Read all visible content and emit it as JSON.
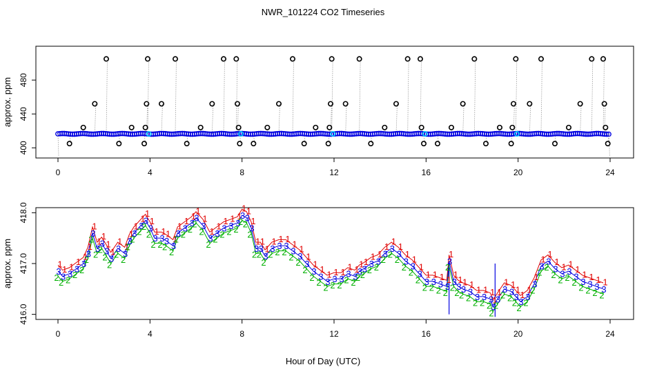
{
  "figure": {
    "title": "NWR_101224  CO2 Timeseries",
    "xlabel": "Hour of Day (UTC)"
  },
  "colors": {
    "axis": "#000000",
    "line_gray": "#9a9a9a",
    "series1": "#e00000",
    "series2": "#00b000",
    "series3": "#0000e0",
    "cyan": "#00c8ff",
    "orange": "#ff8c00"
  },
  "chart_data": [
    {
      "type": "scatter",
      "ylabel": "approx. ppm",
      "xlim": [
        0,
        24
      ],
      "ylim": [
        388,
        520
      ],
      "xticks": [
        0,
        4,
        8,
        12,
        16,
        20,
        24
      ],
      "yticks": [
        400,
        440,
        480
      ],
      "x_tick_labels": [
        "0",
        "4",
        "8",
        "12",
        "16",
        "20",
        "24"
      ],
      "y_tick_labels": [
        "400",
        "440",
        "480"
      ],
      "baseline": 416.5,
      "outliers": [
        {
          "x": 0.5,
          "y": 405
        },
        {
          "x": 1.1,
          "y": 424
        },
        {
          "x": 1.6,
          "y": 452
        },
        {
          "x": 2.1,
          "y": 505
        },
        {
          "x": 2.65,
          "y": 405
        },
        {
          "x": 3.2,
          "y": 424
        },
        {
          "x": 3.75,
          "y": 405
        },
        {
          "x": 3.8,
          "y": 424
        },
        {
          "x": 3.85,
          "y": 452
        },
        {
          "x": 3.9,
          "y": 505
        },
        {
          "x": 4.5,
          "y": 452
        },
        {
          "x": 5.1,
          "y": 505
        },
        {
          "x": 5.6,
          "y": 405
        },
        {
          "x": 6.2,
          "y": 424
        },
        {
          "x": 6.7,
          "y": 452
        },
        {
          "x": 7.2,
          "y": 505
        },
        {
          "x": 7.75,
          "y": 505
        },
        {
          "x": 7.8,
          "y": 452
        },
        {
          "x": 7.85,
          "y": 424
        },
        {
          "x": 7.9,
          "y": 405
        },
        {
          "x": 8.5,
          "y": 405
        },
        {
          "x": 9.1,
          "y": 424
        },
        {
          "x": 9.6,
          "y": 452
        },
        {
          "x": 10.2,
          "y": 505
        },
        {
          "x": 10.7,
          "y": 405
        },
        {
          "x": 11.2,
          "y": 424
        },
        {
          "x": 11.75,
          "y": 405
        },
        {
          "x": 11.8,
          "y": 424
        },
        {
          "x": 11.85,
          "y": 452
        },
        {
          "x": 11.9,
          "y": 505
        },
        {
          "x": 12.5,
          "y": 452
        },
        {
          "x": 13.1,
          "y": 505
        },
        {
          "x": 13.6,
          "y": 405
        },
        {
          "x": 14.2,
          "y": 424
        },
        {
          "x": 14.7,
          "y": 452
        },
        {
          "x": 15.2,
          "y": 505
        },
        {
          "x": 15.75,
          "y": 505
        },
        {
          "x": 15.8,
          "y": 424
        },
        {
          "x": 15.9,
          "y": 405
        },
        {
          "x": 16.5,
          "y": 405
        },
        {
          "x": 17.1,
          "y": 424
        },
        {
          "x": 17.6,
          "y": 452
        },
        {
          "x": 18.1,
          "y": 505
        },
        {
          "x": 18.6,
          "y": 405
        },
        {
          "x": 19.2,
          "y": 424
        },
        {
          "x": 19.7,
          "y": 405
        },
        {
          "x": 19.75,
          "y": 424
        },
        {
          "x": 19.8,
          "y": 452
        },
        {
          "x": 19.9,
          "y": 505
        },
        {
          "x": 20.5,
          "y": 452
        },
        {
          "x": 21.0,
          "y": 505
        },
        {
          "x": 21.6,
          "y": 405
        },
        {
          "x": 22.2,
          "y": 424
        },
        {
          "x": 22.7,
          "y": 452
        },
        {
          "x": 23.2,
          "y": 505
        },
        {
          "x": 23.7,
          "y": 505
        },
        {
          "x": 23.75,
          "y": 452
        },
        {
          "x": 23.8,
          "y": 424
        },
        {
          "x": 23.9,
          "y": 405
        }
      ]
    },
    {
      "type": "line",
      "ylabel": "approx. ppm",
      "xlim": [
        0,
        24
      ],
      "ylim": [
        415.9,
        418.1
      ],
      "xticks": [
        0,
        4,
        8,
        12,
        16,
        20,
        24
      ],
      "yticks": [
        416.0,
        417.0,
        418.0
      ],
      "x_tick_labels": [
        "0",
        "4",
        "8",
        "12",
        "16",
        "20",
        "24"
      ],
      "y_tick_labels": [
        "416.0",
        "417.0",
        "418.0"
      ],
      "trend": {
        "x": [
          0,
          0.2,
          0.5,
          0.8,
          1.1,
          1.3,
          1.5,
          1.7,
          1.9,
          2.1,
          2.3,
          2.6,
          2.9,
          3.1,
          3.3,
          3.6,
          3.8,
          4.0,
          4.2,
          4.5,
          4.7,
          5.0,
          5.2,
          5.5,
          5.8,
          6.0,
          6.3,
          6.6,
          6.9,
          7.2,
          7.5,
          7.8,
          8.0,
          8.2,
          8.4,
          8.6,
          8.8,
          9.0,
          9.3,
          9.6,
          9.9,
          10.2,
          10.5,
          10.8,
          11.1,
          11.4,
          11.7,
          12.0,
          12.3,
          12.6,
          12.9,
          13.1,
          13.3,
          13.6,
          13.9,
          14.2,
          14.5,
          14.8,
          15.1,
          15.4,
          15.7,
          16.0,
          16.3,
          16.6,
          16.9,
          17.0,
          17.2,
          17.4,
          17.6,
          17.9,
          18.2,
          18.5,
          18.8,
          18.9,
          19.1,
          19.4,
          19.7,
          19.9,
          20.1,
          20.4,
          20.7,
          21.0,
          21.3,
          21.6,
          21.9,
          22.2,
          22.5,
          22.8,
          23.1,
          23.4,
          23.7
        ],
        "y": [
          416.85,
          416.75,
          416.8,
          416.9,
          417.0,
          417.2,
          417.6,
          417.3,
          417.4,
          417.25,
          417.1,
          417.3,
          417.2,
          417.45,
          417.6,
          417.75,
          417.85,
          417.7,
          417.5,
          417.5,
          417.45,
          417.35,
          417.6,
          417.7,
          417.8,
          417.9,
          417.75,
          417.5,
          417.6,
          417.7,
          417.75,
          417.8,
          417.95,
          417.9,
          417.7,
          417.3,
          417.3,
          417.15,
          417.3,
          417.35,
          417.35,
          417.25,
          417.15,
          417.0,
          416.85,
          416.75,
          416.65,
          416.7,
          416.7,
          416.8,
          416.75,
          416.85,
          416.9,
          417.0,
          417.05,
          417.2,
          417.3,
          417.2,
          417.05,
          416.95,
          416.8,
          416.65,
          416.65,
          416.6,
          416.55,
          417.05,
          416.65,
          416.55,
          416.5,
          416.45,
          416.35,
          416.35,
          416.3,
          416.15,
          416.3,
          416.5,
          416.45,
          416.35,
          416.25,
          416.35,
          416.6,
          416.95,
          417.05,
          416.9,
          416.8,
          416.85,
          416.75,
          416.65,
          416.6,
          416.55,
          416.5
        ]
      },
      "spikes": [
        {
          "x": 17.0,
          "y": 416.0
        },
        {
          "x": 19.0,
          "y": 415.95
        }
      ]
    }
  ]
}
